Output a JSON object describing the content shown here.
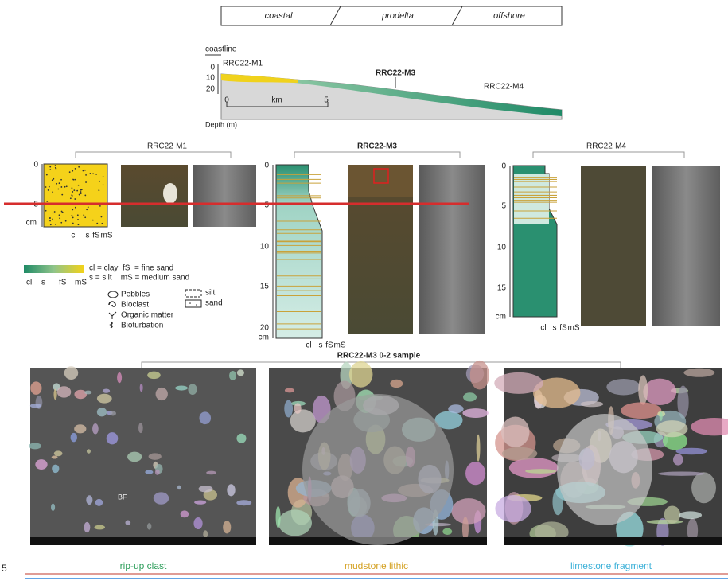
{
  "environments": [
    "coastal",
    "prodelta",
    "offshore"
  ],
  "profile": {
    "coastline": "coastline",
    "cores": [
      "RRC22-M1",
      "RRC22-M3",
      "RRC22-M4"
    ],
    "depth_ticks": [
      0,
      10,
      20
    ],
    "scale": [
      0,
      "km",
      5
    ],
    "depth_label": "Depth (m)"
  },
  "cores": [
    {
      "name": "RRC22-M1",
      "depth_ticks": [
        0,
        5
      ],
      "unit": "cm",
      "grain": [
        "cl",
        "s",
        "fS",
        "mS"
      ]
    },
    {
      "name": "RRC22-M3",
      "depth_ticks": [
        0,
        5,
        10,
        15,
        20
      ],
      "unit": "cm",
      "grain": [
        "cl",
        "s",
        "fS",
        "mS"
      ]
    },
    {
      "name": "RRC22-M4",
      "depth_ticks": [
        0,
        5,
        10,
        15
      ],
      "unit": "cm",
      "grain": [
        "cl",
        "s",
        "fS",
        "mS"
      ]
    }
  ],
  "legend": {
    "grain": [
      "cl",
      "s",
      "fS",
      "mS"
    ],
    "definitions": [
      "cl = clay  fS  = fine sand",
      "s = silt    mS = medium sand"
    ],
    "symbols": [
      "Pebbles",
      "Bioclast",
      "Organic matter",
      "Bioturbation"
    ],
    "fills": [
      "silt",
      "sand"
    ]
  },
  "sample": {
    "title": "RRC22-M3 0-2 sample",
    "bf": "BF",
    "captions": [
      "rip-up clast",
      "mudstone lithic",
      "limestone fragment"
    ]
  },
  "page_number": "5"
}
